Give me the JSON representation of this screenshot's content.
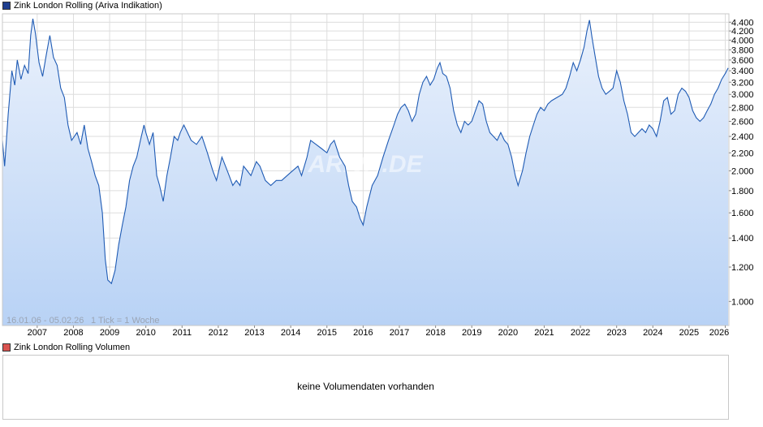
{
  "price_legend": {
    "label": "Zink London Rolling (Ariva Indikation)",
    "color": "#1f3f8f"
  },
  "volume_legend": {
    "label": "Zink London Rolling Volumen",
    "color": "#d9534f"
  },
  "volume_panel": {
    "message": "keine Volumendaten vorhanden"
  },
  "watermark": "ARIVA.DE",
  "info": {
    "range": "16.01.06 - 05.02.26",
    "tick": "1 Tick = 1 Woche"
  },
  "chart_data": {
    "type": "area",
    "title": "Zink London Rolling (Ariva Indikation)",
    "xlabel": "",
    "ylabel": "",
    "y_scale": "log",
    "xlim": [
      2006.04,
      2026.1
    ],
    "ylim": [
      0.88,
      4.6
    ],
    "grid": true,
    "colors": {
      "line": "#1f5bb4",
      "fill_top": "#eaf1fc",
      "fill_bottom": "#b8d2f5",
      "grid": "#dddddd"
    },
    "x_ticks": [
      "2007",
      "2008",
      "2009",
      "2010",
      "2011",
      "2012",
      "2013",
      "2014",
      "2015",
      "2016",
      "2017",
      "2018",
      "2019",
      "2020",
      "2021",
      "2022",
      "2023",
      "2024",
      "2025",
      "2026"
    ],
    "y_ticks": [
      "1.000",
      "1.200",
      "1.400",
      "1.600",
      "1.800",
      "2.000",
      "2.200",
      "2.400",
      "2.600",
      "2.800",
      "3.000",
      "3.200",
      "3.400",
      "3.600",
      "3.800",
      "4.000",
      "4.200",
      "4.400"
    ],
    "series": [
      {
        "values": [
          [
            2006.04,
            2.35
          ],
          [
            2006.1,
            2.05
          ],
          [
            2006.2,
            2.7
          ],
          [
            2006.3,
            3.4
          ],
          [
            2006.38,
            3.15
          ],
          [
            2006.45,
            3.6
          ],
          [
            2006.55,
            3.25
          ],
          [
            2006.65,
            3.5
          ],
          [
            2006.75,
            3.35
          ],
          [
            2006.82,
            4.1
          ],
          [
            2006.88,
            4.48
          ],
          [
            2006.95,
            4.15
          ],
          [
            2007.05,
            3.55
          ],
          [
            2007.15,
            3.3
          ],
          [
            2007.25,
            3.7
          ],
          [
            2007.35,
            4.1
          ],
          [
            2007.45,
            3.65
          ],
          [
            2007.55,
            3.5
          ],
          [
            2007.65,
            3.1
          ],
          [
            2007.75,
            2.95
          ],
          [
            2007.85,
            2.55
          ],
          [
            2007.95,
            2.35
          ],
          [
            2008.1,
            2.45
          ],
          [
            2008.2,
            2.3
          ],
          [
            2008.3,
            2.55
          ],
          [
            2008.4,
            2.25
          ],
          [
            2008.5,
            2.1
          ],
          [
            2008.6,
            1.95
          ],
          [
            2008.7,
            1.85
          ],
          [
            2008.8,
            1.6
          ],
          [
            2008.88,
            1.25
          ],
          [
            2008.95,
            1.12
          ],
          [
            2009.05,
            1.1
          ],
          [
            2009.15,
            1.18
          ],
          [
            2009.25,
            1.35
          ],
          [
            2009.35,
            1.5
          ],
          [
            2009.45,
            1.65
          ],
          [
            2009.55,
            1.9
          ],
          [
            2009.65,
            2.05
          ],
          [
            2009.75,
            2.15
          ],
          [
            2009.85,
            2.35
          ],
          [
            2009.95,
            2.55
          ],
          [
            2010.0,
            2.45
          ],
          [
            2010.1,
            2.3
          ],
          [
            2010.2,
            2.45
          ],
          [
            2010.3,
            1.95
          ],
          [
            2010.38,
            1.85
          ],
          [
            2010.48,
            1.7
          ],
          [
            2010.58,
            1.95
          ],
          [
            2010.68,
            2.15
          ],
          [
            2010.78,
            2.4
          ],
          [
            2010.88,
            2.35
          ],
          [
            2010.95,
            2.45
          ],
          [
            2011.05,
            2.55
          ],
          [
            2011.15,
            2.45
          ],
          [
            2011.25,
            2.35
          ],
          [
            2011.4,
            2.3
          ],
          [
            2011.55,
            2.4
          ],
          [
            2011.7,
            2.2
          ],
          [
            2011.85,
            2.0
          ],
          [
            2011.95,
            1.9
          ],
          [
            2012.1,
            2.15
          ],
          [
            2012.2,
            2.05
          ],
          [
            2012.3,
            1.95
          ],
          [
            2012.4,
            1.85
          ],
          [
            2012.5,
            1.9
          ],
          [
            2012.6,
            1.85
          ],
          [
            2012.7,
            2.05
          ],
          [
            2012.8,
            2.0
          ],
          [
            2012.9,
            1.95
          ],
          [
            2013.05,
            2.1
          ],
          [
            2013.15,
            2.05
          ],
          [
            2013.3,
            1.9
          ],
          [
            2013.45,
            1.85
          ],
          [
            2013.6,
            1.9
          ],
          [
            2013.75,
            1.9
          ],
          [
            2013.9,
            1.95
          ],
          [
            2014.05,
            2.0
          ],
          [
            2014.2,
            2.05
          ],
          [
            2014.3,
            1.95
          ],
          [
            2014.45,
            2.15
          ],
          [
            2014.55,
            2.35
          ],
          [
            2014.7,
            2.3
          ],
          [
            2014.85,
            2.25
          ],
          [
            2015.0,
            2.2
          ],
          [
            2015.1,
            2.3
          ],
          [
            2015.2,
            2.35
          ],
          [
            2015.35,
            2.15
          ],
          [
            2015.5,
            2.05
          ],
          [
            2015.6,
            1.85
          ],
          [
            2015.7,
            1.7
          ],
          [
            2015.82,
            1.65
          ],
          [
            2015.92,
            1.55
          ],
          [
            2016.0,
            1.5
          ],
          [
            2016.1,
            1.65
          ],
          [
            2016.25,
            1.85
          ],
          [
            2016.4,
            1.95
          ],
          [
            2016.55,
            2.15
          ],
          [
            2016.7,
            2.35
          ],
          [
            2016.85,
            2.55
          ],
          [
            2016.95,
            2.7
          ],
          [
            2017.05,
            2.8
          ],
          [
            2017.15,
            2.85
          ],
          [
            2017.25,
            2.75
          ],
          [
            2017.35,
            2.6
          ],
          [
            2017.45,
            2.7
          ],
          [
            2017.55,
            3.0
          ],
          [
            2017.65,
            3.2
          ],
          [
            2017.75,
            3.3
          ],
          [
            2017.85,
            3.15
          ],
          [
            2017.95,
            3.25
          ],
          [
            2018.05,
            3.45
          ],
          [
            2018.12,
            3.55
          ],
          [
            2018.2,
            3.35
          ],
          [
            2018.3,
            3.3
          ],
          [
            2018.4,
            3.1
          ],
          [
            2018.5,
            2.75
          ],
          [
            2018.6,
            2.55
          ],
          [
            2018.7,
            2.45
          ],
          [
            2018.8,
            2.6
          ],
          [
            2018.9,
            2.55
          ],
          [
            2019.0,
            2.6
          ],
          [
            2019.1,
            2.75
          ],
          [
            2019.2,
            2.9
          ],
          [
            2019.3,
            2.85
          ],
          [
            2019.4,
            2.6
          ],
          [
            2019.5,
            2.45
          ],
          [
            2019.6,
            2.4
          ],
          [
            2019.7,
            2.35
          ],
          [
            2019.8,
            2.45
          ],
          [
            2019.9,
            2.35
          ],
          [
            2020.0,
            2.3
          ],
          [
            2020.1,
            2.15
          ],
          [
            2020.2,
            1.95
          ],
          [
            2020.28,
            1.85
          ],
          [
            2020.4,
            2.0
          ],
          [
            2020.5,
            2.2
          ],
          [
            2020.6,
            2.4
          ],
          [
            2020.7,
            2.55
          ],
          [
            2020.8,
            2.7
          ],
          [
            2020.9,
            2.8
          ],
          [
            2021.0,
            2.75
          ],
          [
            2021.1,
            2.85
          ],
          [
            2021.2,
            2.9
          ],
          [
            2021.35,
            2.95
          ],
          [
            2021.5,
            3.0
          ],
          [
            2021.6,
            3.1
          ],
          [
            2021.7,
            3.3
          ],
          [
            2021.8,
            3.55
          ],
          [
            2021.9,
            3.4
          ],
          [
            2022.0,
            3.6
          ],
          [
            2022.1,
            3.85
          ],
          [
            2022.18,
            4.2
          ],
          [
            2022.25,
            4.45
          ],
          [
            2022.32,
            4.05
          ],
          [
            2022.4,
            3.7
          ],
          [
            2022.5,
            3.3
          ],
          [
            2022.6,
            3.1
          ],
          [
            2022.7,
            3.0
          ],
          [
            2022.8,
            3.05
          ],
          [
            2022.9,
            3.1
          ],
          [
            2023.0,
            3.4
          ],
          [
            2023.1,
            3.2
          ],
          [
            2023.2,
            2.9
          ],
          [
            2023.3,
            2.7
          ],
          [
            2023.4,
            2.45
          ],
          [
            2023.5,
            2.4
          ],
          [
            2023.6,
            2.45
          ],
          [
            2023.7,
            2.5
          ],
          [
            2023.8,
            2.45
          ],
          [
            2023.9,
            2.55
          ],
          [
            2024.0,
            2.5
          ],
          [
            2024.1,
            2.4
          ],
          [
            2024.2,
            2.6
          ],
          [
            2024.3,
            2.9
          ],
          [
            2024.4,
            2.95
          ],
          [
            2024.5,
            2.7
          ],
          [
            2024.6,
            2.75
          ],
          [
            2024.7,
            3.0
          ],
          [
            2024.8,
            3.1
          ],
          [
            2024.9,
            3.05
          ],
          [
            2025.0,
            2.95
          ],
          [
            2025.1,
            2.75
          ],
          [
            2025.2,
            2.65
          ],
          [
            2025.3,
            2.6
          ],
          [
            2025.4,
            2.65
          ],
          [
            2025.5,
            2.75
          ],
          [
            2025.6,
            2.85
          ],
          [
            2025.7,
            3.0
          ],
          [
            2025.8,
            3.1
          ],
          [
            2025.9,
            3.25
          ],
          [
            2026.0,
            3.35
          ],
          [
            2026.08,
            3.45
          ]
        ]
      }
    ]
  }
}
